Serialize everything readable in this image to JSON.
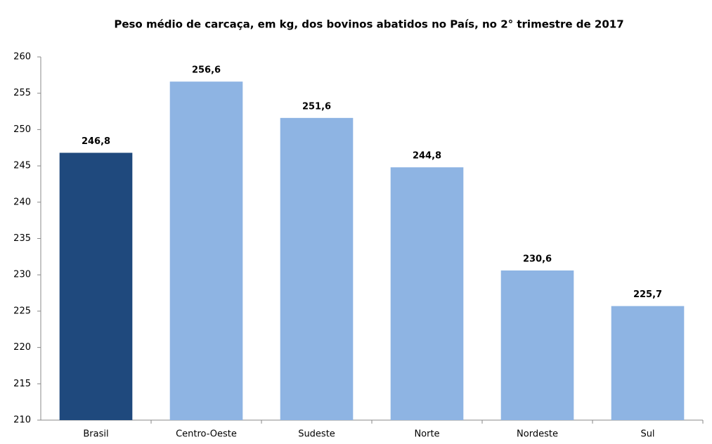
{
  "chart_data": {
    "type": "bar",
    "title": "Peso médio de carcaça, em kg, dos bovinos abatidos no País, no 2° trimestre de 2017",
    "categories": [
      "Brasil",
      "Centro-Oeste",
      "Sudeste",
      "Norte",
      "Nordeste",
      "Sul"
    ],
    "values": [
      246.8,
      256.6,
      251.6,
      244.8,
      230.6,
      225.7
    ],
    "value_labels": [
      "246,8",
      "256,6",
      "251,6",
      "244,8",
      "230,6",
      "225,7"
    ],
    "colors": [
      "#1f497d",
      "#8eb4e3",
      "#8eb4e3",
      "#8eb4e3",
      "#8eb4e3",
      "#8eb4e3"
    ],
    "ylim": [
      210,
      260
    ],
    "yticks": [
      210,
      215,
      220,
      225,
      230,
      235,
      240,
      245,
      250,
      255,
      260
    ],
    "grid": false
  }
}
